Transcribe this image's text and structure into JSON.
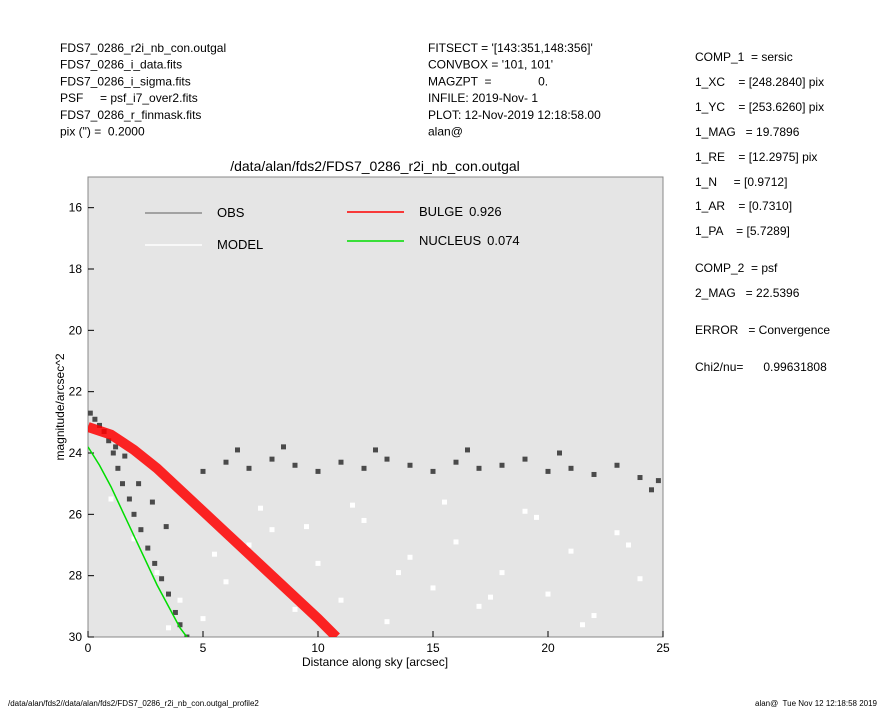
{
  "header": {
    "left": [
      "FDS7_0286_r2i_nb_con.outgal",
      "FDS7_0286_i_data.fits",
      "FDS7_0286_i_sigma.fits",
      "PSF     = psf_i7_over2.fits",
      "FDS7_0286_r_finmask.fits",
      "pix (\") =  0.2000"
    ],
    "middle": [
      "FITSECT = '[143:351,148:356]'",
      "CONVBOX = '101, 101'",
      "MAGZPT  =              0.",
      "INFILE: 2019-Nov- 1",
      "PLOT: 12-Nov-2019 12:18:58.00",
      "alan@"
    ],
    "right": [
      "COMP_1  = sersic",
      "1_XC    = [248.2840] pix",
      "1_YC    = [253.6260] pix",
      "1_MAG   = 19.7896",
      "1_RE    = [12.2975] pix",
      "1_N     = [0.9712]",
      "1_AR    = [0.7310]",
      "1_PA    = [5.7289]",
      "COMP_2  = psf",
      "2_MAG   = 22.5396",
      "ERROR   = Convergence",
      "Chi2/nu=      0.99631808"
    ]
  },
  "chart_data": {
    "type": "scatter",
    "title": "/data/alan/fds2/FDS7_0286_r2i_nb_con.outgal",
    "x_label": "Distance along sky [arcsec]",
    "y_label": "magnitude/arcsec^2",
    "xlim": [
      0,
      25
    ],
    "ylim": [
      30,
      15
    ],
    "xticks": [
      0,
      5,
      10,
      15,
      20,
      25
    ],
    "yticks": [
      16,
      18,
      20,
      22,
      24,
      26,
      28,
      30
    ],
    "series": [
      {
        "name": "OBS",
        "kind": "points",
        "color": "#4a4a4a",
        "legend_color": "#8c8c8c",
        "x": [
          0.1,
          0.3,
          0.5,
          0.7,
          0.9,
          1.1,
          1.3,
          1.5,
          1.8,
          2.0,
          2.3,
          2.6,
          2.9,
          3.2,
          3.5,
          3.8,
          4.0,
          4.3,
          5,
          6,
          7,
          8,
          9,
          10,
          11,
          12,
          13,
          14,
          15,
          16,
          17,
          18,
          19,
          20,
          21,
          22,
          23,
          24,
          24.8,
          6.5,
          8.5,
          12.5,
          16.5,
          20.5,
          24.5,
          2.2,
          2.8,
          3.4,
          1.6,
          1.2
        ],
        "values": [
          22.7,
          22.9,
          23.1,
          23.3,
          23.6,
          24.0,
          24.5,
          25.0,
          25.5,
          26.0,
          26.5,
          27.1,
          27.6,
          28.1,
          28.6,
          29.2,
          29.6,
          30.0,
          24.6,
          24.3,
          24.5,
          24.2,
          24.4,
          24.6,
          24.3,
          24.5,
          24.2,
          24.4,
          24.6,
          24.3,
          24.5,
          24.4,
          24.2,
          24.6,
          24.5,
          24.7,
          24.4,
          24.8,
          24.9,
          23.9,
          23.8,
          23.9,
          23.9,
          24.0,
          25.2,
          25.0,
          25.6,
          26.4,
          24.1,
          23.8
        ]
      },
      {
        "name": "MODEL",
        "kind": "points",
        "color": "#ffffff",
        "legend_color": "#ffffff",
        "x": [
          1,
          2,
          3,
          4,
          5,
          6,
          7,
          8,
          9,
          10,
          11,
          12,
          13,
          14,
          15,
          16,
          17,
          18,
          19,
          20,
          21,
          22,
          23,
          24,
          3.5,
          5.5,
          7.5,
          9.5,
          11.5,
          13.5,
          15.5,
          17.5,
          19.5,
          21.5,
          23.5
        ],
        "values": [
          25.5,
          26.8,
          27.9,
          28.8,
          29.4,
          28.2,
          27.0,
          26.5,
          29.1,
          27.6,
          28.8,
          26.2,
          29.5,
          27.4,
          28.4,
          26.9,
          29.0,
          27.9,
          25.9,
          28.6,
          27.2,
          29.3,
          26.6,
          28.1,
          29.7,
          27.3,
          25.8,
          26.4,
          25.7,
          27.9,
          25.6,
          28.7,
          26.1,
          29.6,
          27.0
        ]
      },
      {
        "name": "BULGE",
        "fraction": 0.926,
        "kind": "line",
        "color": "#ff0000",
        "legend_color": "#ff0000",
        "x": [
          0,
          1,
          2,
          3,
          4,
          5,
          6,
          7,
          8,
          9,
          10,
          10.8
        ],
        "values": [
          23.15,
          23.4,
          23.9,
          24.5,
          25.2,
          25.9,
          26.6,
          27.3,
          28.0,
          28.7,
          29.4,
          30
        ]
      },
      {
        "name": "NUCLEUS",
        "fraction": 0.074,
        "kind": "line",
        "color": "#00dd00",
        "legend_color": "#00dd00",
        "x": [
          0,
          0.5,
          1,
          1.5,
          2,
          2.5,
          3,
          3.5,
          4,
          4.3
        ],
        "values": [
          23.8,
          24.4,
          25.1,
          25.9,
          26.7,
          27.5,
          28.3,
          29.0,
          29.7,
          30
        ]
      }
    ]
  },
  "footer": {
    "left": "/data/alan/fds2//data/alan/fds2/FDS7_0286_r2i_nb_con.outgal_profile2",
    "right": "alan@  Tue Nov 12 12:18:58 2019"
  }
}
